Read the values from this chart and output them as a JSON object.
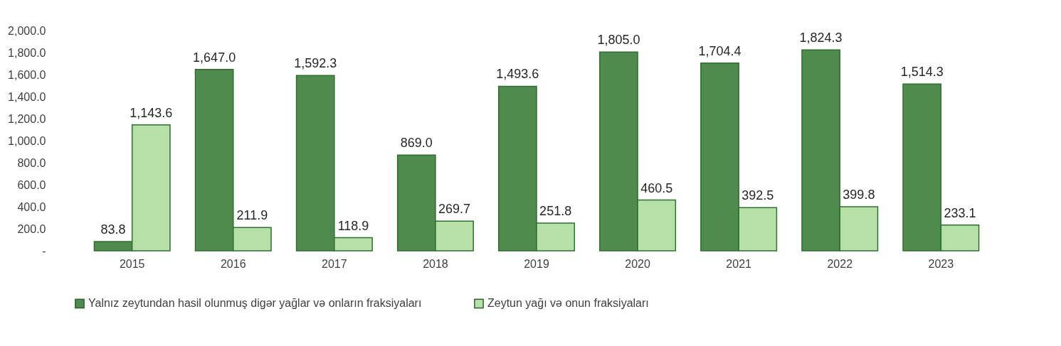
{
  "chart_data": {
    "type": "bar",
    "categories": [
      "2015",
      "2016",
      "2017",
      "2018",
      "2019",
      "2020",
      "2021",
      "2022",
      "2023"
    ],
    "series": [
      {
        "name": "Yalnız zeytundan hasil olunmuş digər yağlar və onların fraksiyaları",
        "color": "#4f8a4f",
        "values": [
          83.8,
          1647.0,
          1592.3,
          869.0,
          1493.6,
          1805.0,
          1704.4,
          1824.3,
          1514.3
        ],
        "value_labels": [
          "83.8",
          "1,647.0",
          "1,592.3",
          "869.0",
          "1,493.6",
          "1,805.0",
          "1,704.4",
          "1,824.3",
          "1,514.3"
        ]
      },
      {
        "name": "Zeytun yağı və onun fraksiyaları",
        "color": "#b5e0a8",
        "values": [
          1143.6,
          211.9,
          118.9,
          269.7,
          251.8,
          460.5,
          392.5,
          399.8,
          233.1
        ],
        "value_labels": [
          "1,143.6",
          "211.9",
          "118.9",
          "269.7",
          "251.8",
          "460.5",
          "392.5",
          "399.8",
          "233.1"
        ]
      }
    ],
    "ylim": [
      0,
      2000
    ],
    "yticks": [
      {
        "value": 0,
        "label": "-"
      },
      {
        "value": 200,
        "label": "200.0"
      },
      {
        "value": 400,
        "label": "400.0"
      },
      {
        "value": 600,
        "label": "600.0"
      },
      {
        "value": 800,
        "label": "800.0"
      },
      {
        "value": 1000,
        "label": "1,000.0"
      },
      {
        "value": 1200,
        "label": "1,200.0"
      },
      {
        "value": 1400,
        "label": "1,400.0"
      },
      {
        "value": 1600,
        "label": "1,600.0"
      },
      {
        "value": 1800,
        "label": "1,800.0"
      },
      {
        "value": 2000,
        "label": "2,000.0"
      }
    ],
    "grid": false,
    "legend": "bottom"
  }
}
